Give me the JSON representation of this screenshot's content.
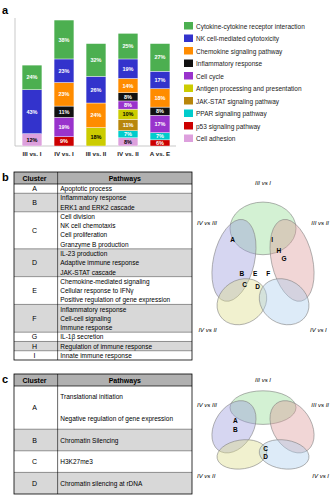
{
  "chart_data": [
    {
      "type": "bar",
      "title": "a",
      "stacked": true,
      "data_labels": true,
      "tick_labels": "x",
      "legend": "right",
      "categories": [
        "III vs. I",
        "IV vs. I",
        "III vs. II",
        "IV vs. II",
        "A vs. E"
      ],
      "ylim": [
        0,
        125
      ],
      "series": [
        {
          "name": "Cell adhesion",
          "color": "#dda0dd",
          "values": [
            12,
            0,
            0,
            8,
            0
          ],
          "value_labels": [
            "12%",
            null,
            null,
            "8%",
            null
          ]
        },
        {
          "name": "p53 signaling pathway",
          "color": "#cc0000",
          "values": [
            0,
            9,
            0,
            0,
            6
          ],
          "value_labels": [
            null,
            "9%",
            null,
            null,
            "6%"
          ]
        },
        {
          "name": "PPAR signaling pathway",
          "color": "#00cccc",
          "values": [
            0,
            0,
            0,
            7,
            7
          ],
          "value_labels": [
            null,
            null,
            null,
            "7%",
            "7%"
          ]
        },
        {
          "name": "JAK-STAT signaling pathway",
          "color": "#b8860b",
          "values": [
            0,
            0,
            0,
            11,
            0
          ],
          "value_labels": [
            null,
            null,
            null,
            "11%",
            null
          ]
        },
        {
          "name": "Antigen processing and presentation",
          "color": "#cccc00",
          "values": [
            0,
            0,
            18,
            10,
            0
          ],
          "value_labels": [
            null,
            null,
            "18%",
            "10%",
            null
          ]
        },
        {
          "name": "Cell cycle",
          "color": "#9933cc",
          "values": [
            0,
            19,
            0,
            8,
            17
          ],
          "value_labels": [
            null,
            "19%",
            null,
            "8%",
            "17%"
          ]
        },
        {
          "name": "Inflammatory response",
          "color": "#111111",
          "values": [
            0,
            11,
            0,
            8,
            8
          ],
          "value_labels": [
            null,
            "11%",
            null,
            "8%",
            "8%"
          ]
        },
        {
          "name": "Chemokine signaling pathway",
          "color": "#ff8c00",
          "values": [
            0,
            23,
            24,
            14,
            18
          ],
          "value_labels": [
            null,
            "23%",
            "24%",
            "14%",
            "18%"
          ]
        },
        {
          "name": "NK cell-mediated cytotoxicity",
          "color": "#3333cc",
          "values": [
            43,
            23,
            26,
            19,
            17
          ],
          "value_labels": [
            "43%",
            "23%",
            "26%",
            "19%",
            "17%"
          ]
        },
        {
          "name": "Cytokine-cytokine receptor interaction",
          "color": "#4caf50",
          "values": [
            24,
            38,
            32,
            25,
            27
          ],
          "value_labels": [
            "24%",
            "38%",
            "32%",
            "25%",
            "27%"
          ]
        }
      ]
    },
    {
      "type": "table",
      "title": "b",
      "columns": [
        "Cluster",
        "Pathways"
      ],
      "header_color": "#b0b0b0",
      "row_colors": [
        "#ffffff",
        "#d8d8d8"
      ],
      "rows": [
        [
          "A",
          "Apoptotic process"
        ],
        [
          "B",
          "Inflammatory response",
          "ERK1 and ERK2 cascade"
        ],
        [
          "C",
          "Cell division",
          "NK cell chemotaxis",
          "Cell proliferation",
          "Granzyme B production"
        ],
        [
          "D",
          "IL-23 production",
          "Adaptive immune response",
          "JAK-STAT cascade"
        ],
        [
          "E",
          "Chemokine-mediated signaling",
          "Cellular response to IFNγ",
          "Positive regulation of gene expression"
        ],
        [
          "F",
          "Inflammatory response",
          "Cell-cell signaling",
          "Immune response"
        ],
        [
          "G",
          "IL-1β secretion"
        ],
        [
          "H",
          "Regulation of immune response"
        ],
        [
          "I",
          "Innate immune response"
        ]
      ]
    },
    {
      "type": "venn",
      "sets": [
        {
          "name": "III vs I",
          "color": "#90dd90"
        },
        {
          "name": "IV vs III",
          "color": "#9999dd"
        },
        {
          "name": "III vs II",
          "color": "#dd9999"
        },
        {
          "name": "IV vs II",
          "color": "#dddd88"
        },
        {
          "name": "IV vs I",
          "color": "#aaccee"
        }
      ],
      "regions": [
        "A",
        "I",
        "H",
        "G",
        "B",
        "E",
        "F",
        "C",
        "D"
      ]
    },
    {
      "type": "table",
      "title": "c",
      "columns": [
        "Cluster",
        "Pathways"
      ],
      "header_color": "#b0b0b0",
      "row_colors": [
        "#ffffff",
        "#d8d8d8"
      ],
      "rows": [
        [
          "A",
          "Translational initiation",
          "Negative regulation of gene expression"
        ],
        [
          "B",
          "Chromatin Silencing"
        ],
        [
          "C",
          "H3K27me3"
        ],
        [
          "D",
          "Chromatin silencing at rDNA"
        ]
      ]
    },
    {
      "type": "venn",
      "sets": [
        {
          "name": "III vs I",
          "color": "#90dd90"
        },
        {
          "name": "IV vs III",
          "color": "#9999dd"
        },
        {
          "name": "III vs II",
          "color": "#dd9999"
        },
        {
          "name": "IV vs II",
          "color": "#dddd88"
        },
        {
          "name": "IV vs I",
          "color": "#aaccee"
        }
      ],
      "regions": [
        "A",
        "B",
        "C",
        "D"
      ]
    }
  ]
}
